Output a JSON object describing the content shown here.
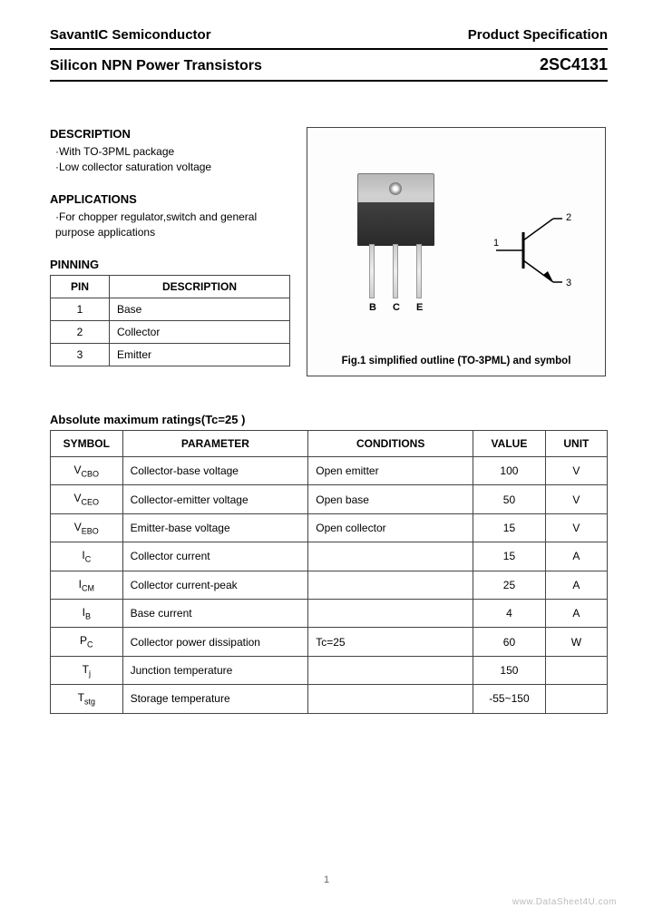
{
  "header": {
    "company": "SavantIC Semiconductor",
    "doctype": "Product Specification"
  },
  "title": {
    "left": "Silicon NPN Power Transistors",
    "right": "2SC4131"
  },
  "description": {
    "heading": "DESCRIPTION",
    "items": [
      "·With TO-3PML package",
      "·Low collector saturation voltage"
    ]
  },
  "applications": {
    "heading": "APPLICATIONS",
    "items": [
      "·For chopper regulator,switch and general purpose applications"
    ]
  },
  "pinning": {
    "heading": "PINNING",
    "columns": [
      "PIN",
      "DESCRIPTION"
    ],
    "rows": [
      {
        "pin": "1",
        "desc": "Base"
      },
      {
        "pin": "2",
        "desc": "Collector"
      },
      {
        "pin": "3",
        "desc": "Emitter"
      }
    ]
  },
  "figure": {
    "caption": "Fig.1 simplified outline (TO-3PML) and symbol",
    "lead_labels": [
      "B",
      "C",
      "E"
    ],
    "symbol_pins": {
      "p1": "1",
      "p2": "2",
      "p3": "3"
    }
  },
  "ratings": {
    "heading": "Absolute maximum ratings(Tc=25  )",
    "columns": [
      "SYMBOL",
      "PARAMETER",
      "CONDITIONS",
      "VALUE",
      "UNIT"
    ],
    "rows": [
      {
        "sym": "V",
        "sub": "CBO",
        "param": "Collector-base voltage",
        "cond": "Open emitter",
        "val": "100",
        "unit": "V"
      },
      {
        "sym": "V",
        "sub": "CEO",
        "param": "Collector-emitter voltage",
        "cond": "Open base",
        "val": "50",
        "unit": "V"
      },
      {
        "sym": "V",
        "sub": "EBO",
        "param": "Emitter-base voltage",
        "cond": "Open collector",
        "val": "15",
        "unit": "V"
      },
      {
        "sym": "I",
        "sub": "C",
        "param": "Collector current",
        "cond": "",
        "val": "15",
        "unit": "A"
      },
      {
        "sym": "I",
        "sub": "CM",
        "param": "Collector current-peak",
        "cond": "",
        "val": "25",
        "unit": "A"
      },
      {
        "sym": "I",
        "sub": "B",
        "param": "Base current",
        "cond": "",
        "val": "4",
        "unit": "A"
      },
      {
        "sym": "P",
        "sub": "C",
        "param": "Collector power dissipation",
        "cond": "Tc=25 ",
        "val": "60",
        "unit": "W"
      },
      {
        "sym": "T",
        "sub": "j",
        "param": "Junction temperature",
        "cond": "",
        "val": "150",
        "unit": " "
      },
      {
        "sym": "T",
        "sub": "stg",
        "param": "Storage temperature",
        "cond": "",
        "val": "-55~150",
        "unit": " "
      }
    ]
  },
  "footer": {
    "pagenum": "1",
    "watermark": "www.DataSheet4U.com"
  },
  "colors": {
    "text": "#000000",
    "border": "#444444",
    "bg": "#ffffff",
    "metal_light": "#d0d0d0",
    "metal_dark": "#a0a0a0",
    "pkg_black": "#2a2a2a",
    "watermark": "#bbbbbb"
  }
}
